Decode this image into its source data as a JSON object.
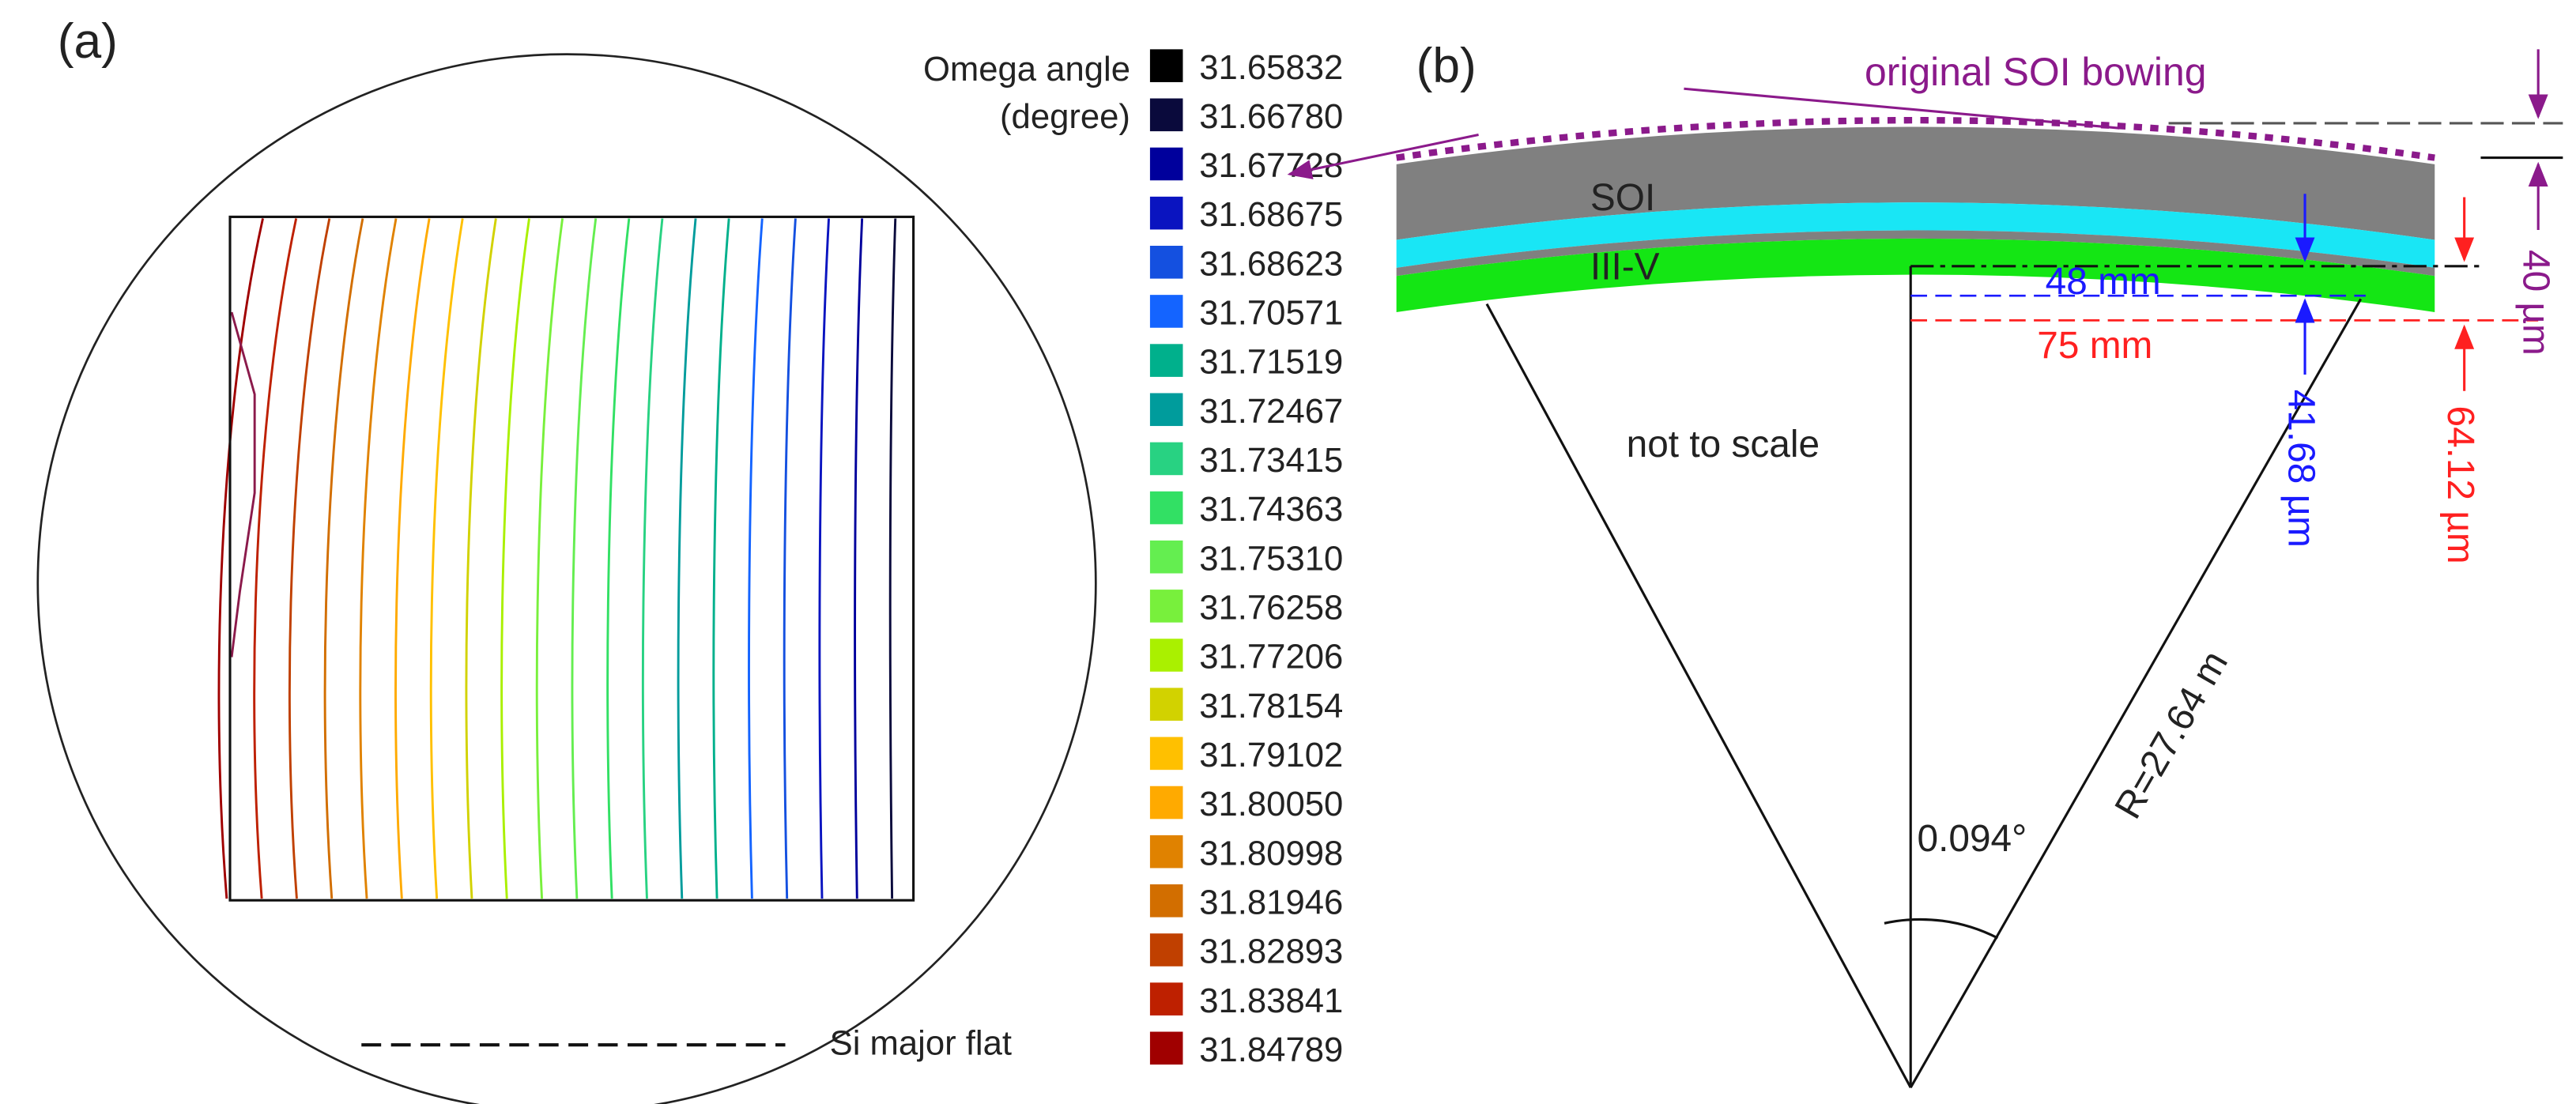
{
  "panel_a": {
    "label": "(a)",
    "legend_title": [
      "Omega angle",
      "(degree)"
    ],
    "flat_label": "Si major flat",
    "legend": [
      {
        "label": "31.65832",
        "color": "#000000"
      },
      {
        "label": "31.66780",
        "color": "#0a0a3c"
      },
      {
        "label": "31.67728",
        "color": "#00009c"
      },
      {
        "label": "31.68675",
        "color": "#0a14c0"
      },
      {
        "label": "31.68623",
        "color": "#1450e0"
      },
      {
        "label": "31.70571",
        "color": "#1464ff"
      },
      {
        "label": "31.71519",
        "color": "#00b08c"
      },
      {
        "label": "31.72467",
        "color": "#009c9c"
      },
      {
        "label": "31.73415",
        "color": "#28d282"
      },
      {
        "label": "31.74363",
        "color": "#32e064"
      },
      {
        "label": "31.75310",
        "color": "#64ee50"
      },
      {
        "label": "31.76258",
        "color": "#78f03c"
      },
      {
        "label": "31.77206",
        "color": "#aaf000"
      },
      {
        "label": "31.78154",
        "color": "#d2d200"
      },
      {
        "label": "31.79102",
        "color": "#ffc000"
      },
      {
        "label": "31.80050",
        "color": "#ffaa00"
      },
      {
        "label": "31.80998",
        "color": "#e08200"
      },
      {
        "label": "31.81946",
        "color": "#d26e00"
      },
      {
        "label": "31.82893",
        "color": "#c04000"
      },
      {
        "label": "31.83841",
        "color": "#be2000"
      },
      {
        "label": "31.84789",
        "color": "#a00000"
      }
    ]
  },
  "panel_b": {
    "label": "(b)",
    "bowing_label": "original SOI bowing",
    "soi_label": "SOI",
    "iiiv_label": "III-V",
    "dist_48": "48 mm",
    "dist_75": "75 mm",
    "h_4168": "41.68 µm",
    "h_6412": "64.12 µm",
    "h_40": "40 µm",
    "note": "not to scale",
    "radius": "R=27.64 m",
    "angle": "0.094°"
  }
}
